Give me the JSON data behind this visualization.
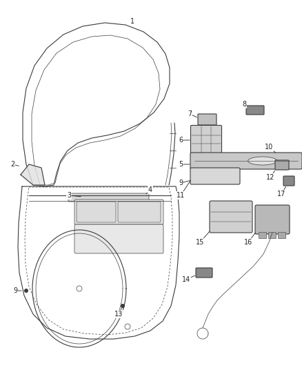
{
  "bg_color": "#ffffff",
  "fig_width": 4.38,
  "fig_height": 5.33,
  "dpi": 100,
  "line_color": "#3a3a3a",
  "light_gray": "#cccccc",
  "mid_gray": "#999999",
  "dark_gray": "#666666",
  "font_size": 7.0
}
